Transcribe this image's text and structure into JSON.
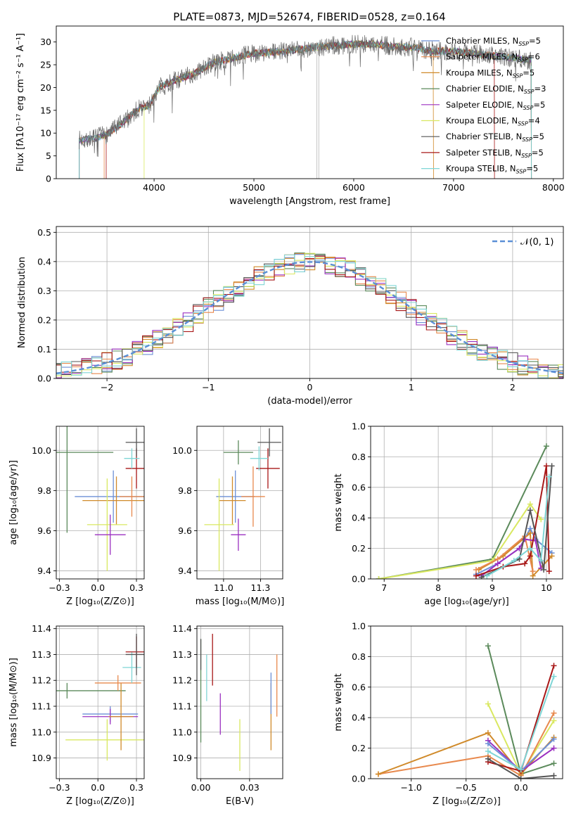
{
  "title": "PLATE=0873, MJD=52674, FIBERID=0528, z=0.164",
  "models": [
    {
      "name": "Chabrier MILES",
      "n": "5",
      "color": "#6c8fd6"
    },
    {
      "name": "Salpeter MILES",
      "n": "6",
      "color": "#e8894d"
    },
    {
      "name": "Kroupa MILES",
      "n": "5",
      "color": "#d08a2a"
    },
    {
      "name": "Chabrier ELODIE",
      "n": "3",
      "color": "#5b8a5b"
    },
    {
      "name": "Salpeter ELODIE",
      "n": "5",
      "color": "#9b30c0"
    },
    {
      "name": "Kroupa ELODIE",
      "n": "4",
      "color": "#d9e860"
    },
    {
      "name": "Chabrier STELIB",
      "n": "5",
      "color": "#555555"
    },
    {
      "name": "Salpeter STELIB",
      "n": "5",
      "color": "#a81818"
    },
    {
      "name": "Kroupa STELIB",
      "n": "5",
      "color": "#7fd6d6"
    }
  ],
  "chart_data": [
    {
      "id": "spectrum",
      "type": "line",
      "xlabel": "wavelength [Angstrom, rest frame]",
      "ylabel": "Flux [fλ10⁻¹⁷ erg cm⁻² s⁻¹ A⁻¹]",
      "xlim": [
        3020,
        8100
      ],
      "ylim": [
        0,
        33.5
      ],
      "xticks": [
        4000,
        5000,
        6000,
        7000,
        8000
      ],
      "yticks": [
        0,
        5,
        10,
        15,
        20,
        25,
        30
      ],
      "grid": false,
      "legend": "upper right",
      "continuum": [
        [
          3250,
          8.5
        ],
        [
          3400,
          8.8
        ],
        [
          3550,
          10.0
        ],
        [
          3700,
          12.5
        ],
        [
          3850,
          15.5
        ],
        [
          3950,
          16.0
        ],
        [
          4050,
          20.0
        ],
        [
          4200,
          21.5
        ],
        [
          4400,
          23.0
        ],
        [
          4600,
          25.5
        ],
        [
          4800,
          26.5
        ],
        [
          5000,
          27.5
        ],
        [
          5200,
          27.8
        ],
        [
          5400,
          28.2
        ],
        [
          5600,
          28.8
        ],
        [
          5800,
          29.2
        ],
        [
          6000,
          29.5
        ],
        [
          6200,
          29.5
        ],
        [
          6400,
          29.0
        ],
        [
          6600,
          28.8
        ],
        [
          6800,
          28.0
        ],
        [
          7000,
          28.0
        ],
        [
          7200,
          27.5
        ],
        [
          7400,
          27.0
        ],
        [
          7600,
          26.5
        ],
        [
          7750,
          26.0
        ]
      ]
    },
    {
      "id": "residuals",
      "type": "histogram",
      "xlabel": "(data-model)/error",
      "ylabel": "Normed distribution",
      "xlim": [
        -2.5,
        2.5
      ],
      "ylim": [
        0,
        0.52
      ],
      "xticks": [
        -2,
        -1,
        0,
        1,
        2
      ],
      "yticks": [
        0.0,
        0.1,
        0.2,
        0.3,
        0.4,
        0.5
      ],
      "grid": true,
      "legend_label": "𝒩(0, 1)",
      "legend": "upper right",
      "bin_width": 0.1
    },
    {
      "id": "age-vs-Z",
      "type": "scatter",
      "xlabel": "Z [log₁₀(Z/Z⊙)]",
      "ylabel": "age  [log₁₀(age/yr)]",
      "xlim": [
        -0.27,
        0.3
      ],
      "ylim": [
        9.36,
        10.12
      ],
      "xticks": [
        -0.25,
        0.0,
        0.25
      ],
      "yticks": [
        9.4,
        9.6,
        9.8,
        10.0
      ],
      "grid": true,
      "points": [
        {
          "model": 3,
          "x": -0.2,
          "y": 9.99,
          "xerr": 0.3,
          "yerr": 0.4
        },
        {
          "model": 0,
          "x": 0.1,
          "y": 9.77,
          "xerr": 0.25,
          "yerr": 0.13
        },
        {
          "model": 2,
          "x": 0.12,
          "y": 9.75,
          "xerr": 0.22,
          "yerr": 0.12
        },
        {
          "model": 5,
          "x": 0.06,
          "y": 9.63,
          "xerr": 0.13,
          "yerr": 0.23
        },
        {
          "model": 4,
          "x": 0.08,
          "y": 9.58,
          "xerr": 0.1,
          "yerr": 0.1
        },
        {
          "model": 1,
          "x": 0.22,
          "y": 9.77,
          "xerr": 0.08,
          "yerr": 0.1
        },
        {
          "model": 7,
          "x": 0.25,
          "y": 9.91,
          "xerr": 0.07,
          "yerr": 0.1
        },
        {
          "model": 6,
          "x": 0.25,
          "y": 10.04,
          "xerr": 0.07,
          "yerr": 0.07
        },
        {
          "model": 8,
          "x": 0.22,
          "y": 9.96,
          "xerr": 0.05,
          "yerr": 0.05
        }
      ]
    },
    {
      "id": "age-vs-mass",
      "type": "scatter",
      "xlabel": "mass [log₁₀(M/M⊙)]",
      "ylabel": "",
      "xlim": [
        10.82,
        11.4
      ],
      "ylim": [
        9.36,
        10.12
      ],
      "xticks": [
        11.0,
        11.25
      ],
      "yticks": [
        9.4,
        9.6,
        9.8,
        10.0
      ],
      "grid": true,
      "points": [
        {
          "model": 3,
          "x": 11.1,
          "y": 9.99,
          "xerr": 0.1,
          "yerr": 0.06
        },
        {
          "model": 0,
          "x": 11.08,
          "y": 9.77,
          "xerr": 0.13,
          "yerr": 0.13
        },
        {
          "model": 2,
          "x": 11.06,
          "y": 9.75,
          "xerr": 0.09,
          "yerr": 0.12
        },
        {
          "model": 5,
          "x": 10.97,
          "y": 9.63,
          "xerr": 0.1,
          "yerr": 0.23
        },
        {
          "model": 4,
          "x": 11.1,
          "y": 9.58,
          "xerr": 0.05,
          "yerr": 0.08
        },
        {
          "model": 1,
          "x": 11.2,
          "y": 9.77,
          "xerr": 0.08,
          "yerr": 0.15
        },
        {
          "model": 7,
          "x": 11.3,
          "y": 9.91,
          "xerr": 0.08,
          "yerr": 0.1
        },
        {
          "model": 6,
          "x": 11.31,
          "y": 10.04,
          "xerr": 0.08,
          "yerr": 0.07
        },
        {
          "model": 8,
          "x": 11.24,
          "y": 9.96,
          "xerr": 0.06,
          "yerr": 0.06
        }
      ]
    },
    {
      "id": "mass-weight-vs-age",
      "type": "line",
      "xlabel": "age  [log₁₀(age/yr)]",
      "ylabel": "mass weight",
      "xlim": [
        6.75,
        10.3
      ],
      "ylim": [
        0,
        1.0
      ],
      "xticks": [
        7,
        8,
        9,
        10
      ],
      "yticks": [
        0.0,
        0.2,
        0.4,
        0.6,
        0.8,
        1.0
      ],
      "grid": true,
      "series": [
        {
          "model": 3,
          "points": [
            [
              6.9,
              0.0
            ],
            [
              9.0,
              0.13
            ],
            [
              10.0,
              0.87
            ]
          ]
        },
        {
          "model": 5,
          "points": [
            [
              6.9,
              0.0
            ],
            [
              9.0,
              0.12
            ],
            [
              9.7,
              0.49
            ],
            [
              9.9,
              0.39
            ]
          ]
        },
        {
          "model": 0,
          "points": [
            [
              8.7,
              0.03
            ],
            [
              9.1,
              0.1
            ],
            [
              9.5,
              0.2
            ],
            [
              9.7,
              0.33
            ],
            [
              9.8,
              0.26
            ],
            [
              10.1,
              0.17
            ]
          ]
        },
        {
          "model": 2,
          "points": [
            [
              8.75,
              0.06
            ],
            [
              9.2,
              0.15
            ],
            [
              9.7,
              0.3
            ],
            [
              9.75,
              0.02
            ],
            [
              10.1,
              0.15
            ]
          ]
        },
        {
          "model": 1,
          "points": [
            [
              8.7,
              0.06
            ],
            [
              9.1,
              0.13
            ],
            [
              9.6,
              0.28
            ],
            [
              9.75,
              0.05
            ]
          ]
        },
        {
          "model": 4,
          "points": [
            [
              8.8,
              0.02
            ],
            [
              9.1,
              0.1
            ],
            [
              9.5,
              0.2
            ],
            [
              9.6,
              0.26
            ],
            [
              9.8,
              0.25
            ],
            [
              9.9,
              0.07
            ]
          ]
        },
        {
          "model": 7,
          "points": [
            [
              8.7,
              0.02
            ],
            [
              9.2,
              0.08
            ],
            [
              9.6,
              0.1
            ],
            [
              9.7,
              0.15
            ],
            [
              10.0,
              0.74
            ],
            [
              10.05,
              0.05
            ]
          ]
        },
        {
          "model": 6,
          "points": [
            [
              8.8,
              0.01
            ],
            [
              9.5,
              0.13
            ],
            [
              9.7,
              0.45
            ],
            [
              9.95,
              0.06
            ],
            [
              10.1,
              0.74
            ]
          ]
        },
        {
          "model": 8,
          "points": [
            [
              8.9,
              0.02
            ],
            [
              9.4,
              0.12
            ],
            [
              9.7,
              0.2
            ],
            [
              9.9,
              0.12
            ],
            [
              10.05,
              0.67
            ]
          ]
        }
      ]
    },
    {
      "id": "mass-vs-Z",
      "type": "scatter",
      "xlabel": "Z [log₁₀(Z/Z⊙)]",
      "ylabel": "mass [log₁₀(M/M⊙)]",
      "xlim": [
        -0.27,
        0.3
      ],
      "ylim": [
        10.82,
        11.41
      ],
      "xticks": [
        -0.25,
        0.0,
        0.25
      ],
      "yticks": [
        10.9,
        11.0,
        11.1,
        11.2,
        11.3,
        11.4
      ],
      "grid": true,
      "points": [
        {
          "model": 3,
          "x": -0.2,
          "y": 11.16,
          "xerr": 0.38,
          "yerr": 0.03
        },
        {
          "model": 5,
          "x": 0.06,
          "y": 10.97,
          "xerr": 0.27,
          "yerr": 0.08
        },
        {
          "model": 0,
          "x": 0.08,
          "y": 11.07,
          "xerr": 0.18,
          "yerr": 0.03
        },
        {
          "model": 4,
          "x": 0.08,
          "y": 11.06,
          "xerr": 0.18,
          "yerr": 0.03
        },
        {
          "model": 2,
          "x": 0.15,
          "y": 11.06,
          "xerr": 0.08,
          "yerr": 0.13
        },
        {
          "model": 1,
          "x": 0.13,
          "y": 11.19,
          "xerr": 0.15,
          "yerr": 0.03
        },
        {
          "model": 8,
          "x": 0.22,
          "y": 11.25,
          "xerr": 0.06,
          "yerr": 0.06
        },
        {
          "model": 7,
          "x": 0.25,
          "y": 11.31,
          "xerr": 0.07,
          "yerr": 0.06
        },
        {
          "model": 6,
          "x": 0.25,
          "y": 11.3,
          "xerr": 0.07,
          "yerr": 0.08
        }
      ]
    },
    {
      "id": "mass-vs-ebv",
      "type": "scatter",
      "xlabel": "E(B-V)",
      "ylabel": "",
      "xlim": [
        -0.002,
        0.042
      ],
      "ylim": [
        10.82,
        11.41
      ],
      "xticks": [
        0.0,
        0.025
      ],
      "yticks": [
        10.9,
        11.0,
        11.1,
        11.2,
        11.3,
        11.4
      ],
      "grid": true,
      "points": [
        {
          "model": 3,
          "x": 0.0,
          "y": 11.16,
          "xerr": 0.0,
          "yerr": 0.2
        },
        {
          "model": 6,
          "x": 0.0,
          "y": 11.3,
          "xerr": 0.0,
          "yerr": 0.06
        },
        {
          "model": 8,
          "x": 0.003,
          "y": 11.21,
          "xerr": 0.0,
          "yerr": 0.09
        },
        {
          "model": 7,
          "x": 0.006,
          "y": 11.28,
          "xerr": 0.0,
          "yerr": 0.1
        },
        {
          "model": 4,
          "x": 0.01,
          "y": 11.07,
          "xerr": 0.0,
          "yerr": 0.08
        },
        {
          "model": 5,
          "x": 0.02,
          "y": 10.95,
          "xerr": 0.0,
          "yerr": 0.1
        },
        {
          "model": 2,
          "x": 0.036,
          "y": 11.06,
          "xerr": 0.0,
          "yerr": 0.13
        },
        {
          "model": 0,
          "x": 0.036,
          "y": 11.15,
          "xerr": 0.0,
          "yerr": 0.08
        },
        {
          "model": 1,
          "x": 0.039,
          "y": 11.18,
          "xerr": 0.0,
          "yerr": 0.12
        }
      ]
    },
    {
      "id": "mass-weight-vs-Z",
      "type": "line",
      "xlabel": "Z [log₁₀(Z/Z⊙)]",
      "ylabel": "mass weight",
      "xlim": [
        -1.37,
        0.38
      ],
      "ylim": [
        0,
        1.0
      ],
      "xticks": [
        -1.0,
        -0.5,
        0.0
      ],
      "yticks": [
        0.0,
        0.2,
        0.4,
        0.6,
        0.8,
        1.0
      ],
      "grid": true,
      "series": [
        {
          "model": 3,
          "points": [
            [
              -0.3,
              0.87
            ],
            [
              0.0,
              0.03
            ],
            [
              0.3,
              0.1
            ]
          ]
        },
        {
          "model": 5,
          "points": [
            [
              -0.3,
              0.49
            ],
            [
              0.0,
              0.03
            ],
            [
              0.3,
              0.38
            ]
          ]
        },
        {
          "model": 1,
          "points": [
            [
              -1.3,
              0.03
            ],
            [
              -0.3,
              0.15
            ],
            [
              0.0,
              0.02
            ],
            [
              0.3,
              0.43
            ]
          ]
        },
        {
          "model": 2,
          "points": [
            [
              -1.3,
              0.03
            ],
            [
              -0.3,
              0.3
            ],
            [
              0.0,
              0.03
            ],
            [
              0.3,
              0.27
            ]
          ]
        },
        {
          "model": 4,
          "points": [
            [
              -0.3,
              0.25
            ],
            [
              0.0,
              0.05
            ],
            [
              0.3,
              0.2
            ]
          ]
        },
        {
          "model": 0,
          "points": [
            [
              -0.3,
              0.23
            ],
            [
              0.0,
              0.05
            ],
            [
              0.3,
              0.26
            ]
          ]
        },
        {
          "model": 7,
          "points": [
            [
              -0.3,
              0.11
            ],
            [
              0.0,
              0.05
            ],
            [
              0.3,
              0.74
            ]
          ]
        },
        {
          "model": 6,
          "points": [
            [
              -0.3,
              0.13
            ],
            [
              0.0,
              0.0
            ],
            [
              0.3,
              0.02
            ]
          ]
        },
        {
          "model": 8,
          "points": [
            [
              -0.3,
              0.18
            ],
            [
              0.0,
              0.06
            ],
            [
              0.3,
              0.67
            ]
          ]
        }
      ]
    }
  ]
}
